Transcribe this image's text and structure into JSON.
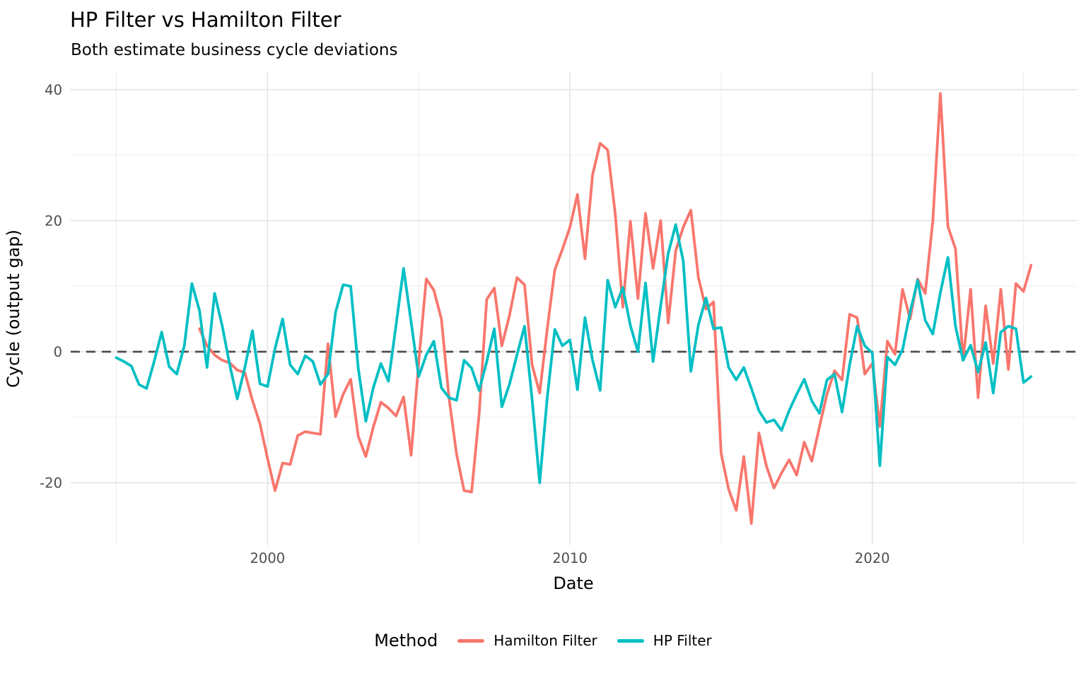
{
  "chart_data": {
    "type": "line",
    "title": "HP Filter vs Hamilton Filter",
    "subtitle": "Both estimate business cycle deviations",
    "xlabel": "Date",
    "ylabel": "Cycle (output gap)",
    "x_unit": "decimal years, quarterly observations",
    "xlim": [
      1993.49,
      2026.76
    ],
    "ylim": [
      -29.5,
      42.7
    ],
    "x_ticks": {
      "major": [
        2000,
        2010,
        2020
      ],
      "minor": [
        1995,
        2005,
        2015,
        2025
      ]
    },
    "y_ticks": {
      "major": [
        40,
        20,
        0,
        -20
      ],
      "minor": [
        30,
        10,
        -10
      ]
    },
    "grid": true,
    "legend_position": "bottom",
    "reference_line": {
      "y": 0,
      "style": "dashed",
      "color": "#4d4d4d"
    },
    "series": [
      {
        "name": "Hamilton Filter",
        "color": "#F8766D",
        "x_start": 1997.75,
        "x_step": 0.25,
        "values": [
          3.5,
          0.9,
          -0.5,
          -1.3,
          -1.7,
          -2.8,
          -3.2,
          -7.4,
          -11.0,
          -16.3,
          -21.2,
          -17.0,
          -17.2,
          -12.8,
          -12.2,
          -12.4,
          -12.6,
          1.2,
          -9.9,
          -6.5,
          -4.2,
          -12.9,
          -16.0,
          -11.5,
          -7.7,
          -8.6,
          -9.8,
          -6.9,
          -15.8,
          -1.6,
          11.1,
          9.4,
          5.0,
          -7.0,
          -15.6,
          -21.2,
          -21.4,
          -9.5,
          8.0,
          9.7,
          0.9,
          5.5,
          11.3,
          10.2,
          -2.0,
          -6.3,
          3.5,
          12.5,
          15.6,
          19.0,
          24.0,
          14.2,
          27.0,
          31.8,
          30.8,
          21.0,
          6.8,
          19.9,
          8.1,
          21.1,
          12.7,
          20.0,
          4.4,
          15.4,
          19.0,
          21.6,
          11.3,
          6.5,
          7.6,
          -15.5,
          -21.0,
          -24.2,
          -16.0,
          -26.2,
          -12.4,
          -17.5,
          -20.8,
          -18.5,
          -16.5,
          -18.8,
          -13.8,
          -16.7,
          -11.5,
          -6.5,
          -2.9,
          -4.3,
          5.7,
          5.2,
          -3.4,
          -1.8,
          -11.4,
          1.6,
          -0.4,
          9.5,
          5.0,
          11.1,
          8.9,
          19.9,
          39.4,
          19.1,
          15.7,
          -1.3,
          9.5,
          -7.0,
          7.0,
          -1.8,
          9.5,
          -2.7,
          10.4,
          9.2,
          13.2
        ]
      },
      {
        "name": "HP Filter",
        "color": "#00BFC4",
        "x_start": 1995.0,
        "x_step": 0.25,
        "values": [
          -0.9,
          -1.5,
          -2.2,
          -5.0,
          -5.6,
          -1.5,
          3.0,
          -2.3,
          -3.4,
          0.9,
          10.4,
          6.3,
          -2.4,
          8.9,
          4.0,
          -2.0,
          -7.2,
          -2.4,
          3.2,
          -4.9,
          -5.3,
          0.5,
          5.0,
          -2.0,
          -3.4,
          -0.6,
          -1.5,
          -5.0,
          -3.4,
          6.0,
          10.2,
          10.0,
          -2.5,
          -10.6,
          -5.5,
          -1.8,
          -4.5,
          4.0,
          12.7,
          4.5,
          -3.8,
          -0.5,
          1.6,
          -5.5,
          -7.0,
          -7.4,
          -1.3,
          -2.5,
          -5.9,
          -1.5,
          3.5,
          -8.4,
          -5.0,
          -0.5,
          3.9,
          -7.3,
          -20.0,
          -7.0,
          3.4,
          0.9,
          1.8,
          -5.8,
          5.2,
          -1.3,
          -5.9,
          10.9,
          6.8,
          9.8,
          4.0,
          0.0,
          10.5,
          -1.5,
          7.0,
          15.0,
          19.4,
          13.8,
          -3.0,
          4.1,
          8.2,
          3.5,
          3.7,
          -2.4,
          -4.3,
          -2.4,
          -5.6,
          -9.0,
          -10.8,
          -10.4,
          -12.0,
          -9.0,
          -6.5,
          -4.2,
          -7.5,
          -9.4,
          -4.3,
          -3.4,
          -9.2,
          -2.0,
          3.9,
          0.9,
          -0.2,
          -17.4,
          -0.8,
          -2.0,
          0.3,
          6.0,
          10.9,
          4.8,
          2.7,
          9.0,
          14.4,
          3.9,
          -1.3,
          1.0,
          -3.1,
          1.4,
          -6.3,
          3.0,
          3.9,
          3.5,
          -4.7,
          -3.8
        ]
      }
    ]
  },
  "legend": {
    "title": "Method"
  },
  "axis_tick_labels": {
    "x": [
      "2000",
      "2010",
      "2020"
    ],
    "y": [
      "40",
      "20",
      "0",
      "-20"
    ]
  }
}
